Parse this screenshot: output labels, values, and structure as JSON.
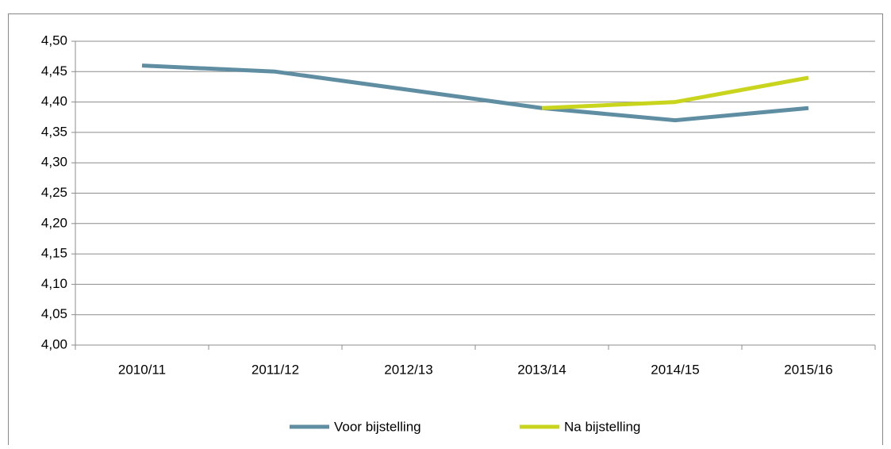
{
  "chart_data": {
    "type": "line",
    "categories": [
      "2010/11",
      "2011/12",
      "2012/13",
      "2013/14",
      "2014/15",
      "2015/16"
    ],
    "series": [
      {
        "name": "Voor bijstelling",
        "color": "#5f8ea2",
        "values": [
          4.46,
          4.45,
          4.42,
          4.39,
          4.37,
          4.39
        ]
      },
      {
        "name": "Na bijstelling",
        "color": "#c9d41c",
        "values": [
          null,
          null,
          null,
          4.39,
          4.4,
          4.44
        ]
      }
    ],
    "ylim": [
      4.0,
      4.5
    ],
    "yticks": [
      {
        "value": 4.0,
        "label": "4,00"
      },
      {
        "value": 4.05,
        "label": "4,05"
      },
      {
        "value": 4.1,
        "label": "4,10"
      },
      {
        "value": 4.15,
        "label": "4,15"
      },
      {
        "value": 4.2,
        "label": "4,20"
      },
      {
        "value": 4.25,
        "label": "4,25"
      },
      {
        "value": 4.3,
        "label": "4,30"
      },
      {
        "value": 4.35,
        "label": "4,35"
      },
      {
        "value": 4.4,
        "label": "4,40"
      },
      {
        "value": 4.45,
        "label": "4,45"
      },
      {
        "value": 4.5,
        "label": "4,50"
      }
    ],
    "grid": true,
    "legend": "bottom"
  }
}
